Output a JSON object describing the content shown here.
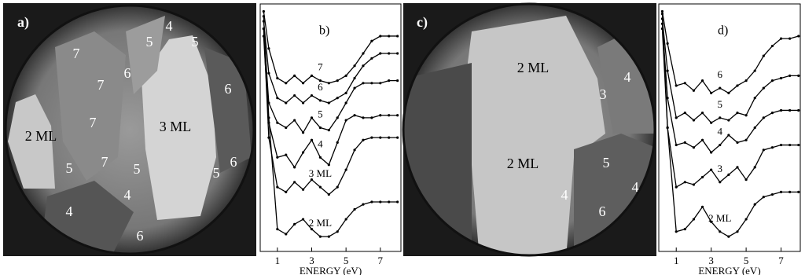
{
  "images": [
    {
      "label": "a)",
      "annotations": [
        "4",
        "5",
        "5",
        "7",
        "6",
        "7",
        "6",
        "7",
        "2 ML",
        "3 ML",
        "7",
        "5",
        "5",
        "6",
        "5",
        "4",
        "4",
        "6"
      ]
    },
    {
      "label": "c)",
      "annotations": [
        "2 ML",
        "4",
        "3",
        "2 ML",
        "5",
        "4",
        "4",
        "6"
      ]
    }
  ],
  "chart_data": [
    {
      "type": "line",
      "label": "b)",
      "xlabel": "ENERGY (eV)",
      "color": "#000000",
      "x": [
        0.2,
        0.5,
        1,
        1.5,
        2,
        2.5,
        3,
        3.5,
        4,
        4.5,
        5,
        5.5,
        6,
        6.5,
        7,
        7.5,
        8
      ],
      "xlim": [
        0,
        8.2
      ],
      "ylim": [
        0,
        10
      ],
      "xticks": [
        1,
        3,
        5,
        7
      ],
      "series": [
        {
          "name": "2 ML",
          "values": [
            9.5,
            5.4,
            0.9,
            0.7,
            1.1,
            1.3,
            0.9,
            0.6,
            0.6,
            0.8,
            1.3,
            1.7,
            1.9,
            2.0,
            2.0,
            2.0,
            2.0
          ]
        },
        {
          "name": "3 ML",
          "values": [
            9.0,
            4.6,
            2.6,
            2.4,
            2.8,
            2.5,
            2.9,
            2.6,
            2.3,
            2.6,
            3.3,
            4.1,
            4.5,
            4.6,
            4.6,
            4.6,
            4.6
          ]
        },
        {
          "name": "4",
          "values": [
            8.7,
            5.2,
            3.8,
            3.9,
            3.4,
            4.0,
            4.5,
            3.8,
            3.5,
            4.4,
            5.3,
            5.5,
            5.4,
            5.4,
            5.5,
            5.5,
            5.5
          ]
        },
        {
          "name": "5",
          "values": [
            9.0,
            6.0,
            5.2,
            5.0,
            5.3,
            4.8,
            5.4,
            5.0,
            4.9,
            5.4,
            6.0,
            6.6,
            6.8,
            6.8,
            6.8,
            6.9,
            6.9
          ]
        },
        {
          "name": "6",
          "values": [
            9.3,
            7.2,
            6.2,
            6.0,
            6.3,
            6.0,
            6.3,
            6.1,
            6.0,
            6.2,
            6.4,
            7.0,
            7.5,
            7.8,
            8.0,
            8.0,
            8.0
          ]
        },
        {
          "name": "7",
          "values": [
            9.7,
            8.2,
            7.0,
            6.8,
            7.1,
            6.8,
            7.1,
            6.9,
            6.8,
            6.9,
            7.1,
            7.5,
            8.0,
            8.5,
            8.7,
            8.7,
            8.7
          ]
        }
      ]
    },
    {
      "type": "line",
      "label": "d)",
      "xlabel": "ENERGY (eV)",
      "color": "#000000",
      "x": [
        0.2,
        0.5,
        1,
        1.5,
        2,
        2.5,
        3,
        3.5,
        4,
        4.5,
        5,
        5.5,
        6,
        6.5,
        7,
        7.5,
        8
      ],
      "xlim": [
        0,
        8.1
      ],
      "ylim": [
        0,
        10
      ],
      "xticks": [
        1,
        3,
        5,
        7
      ],
      "series": [
        {
          "name": "2 ML",
          "values": [
            9.6,
            5.0,
            0.8,
            0.9,
            1.3,
            1.8,
            1.2,
            0.8,
            0.6,
            0.8,
            1.3,
            1.9,
            2.2,
            2.3,
            2.4,
            2.4,
            2.4
          ]
        },
        {
          "name": "3",
          "values": [
            9.0,
            5.0,
            2.6,
            2.8,
            2.7,
            3.0,
            3.3,
            2.8,
            3.1,
            3.4,
            2.9,
            3.4,
            4.1,
            4.2,
            4.3,
            4.3,
            4.3
          ]
        },
        {
          "name": "4",
          "values": [
            9.2,
            6.2,
            4.3,
            4.4,
            4.2,
            4.5,
            4.0,
            4.3,
            4.7,
            4.4,
            4.5,
            5.0,
            5.4,
            5.6,
            5.7,
            5.7,
            5.7
          ]
        },
        {
          "name": "5",
          "values": [
            9.4,
            7.3,
            5.4,
            5.6,
            5.3,
            5.6,
            5.2,
            5.4,
            5.3,
            5.6,
            5.5,
            6.2,
            6.6,
            6.9,
            7.0,
            7.1,
            7.1
          ]
        },
        {
          "name": "6",
          "values": [
            9.7,
            8.4,
            6.7,
            6.8,
            6.5,
            6.9,
            6.4,
            6.6,
            6.4,
            6.7,
            6.9,
            7.3,
            7.9,
            8.3,
            8.6,
            8.6,
            8.7
          ]
        }
      ]
    }
  ]
}
